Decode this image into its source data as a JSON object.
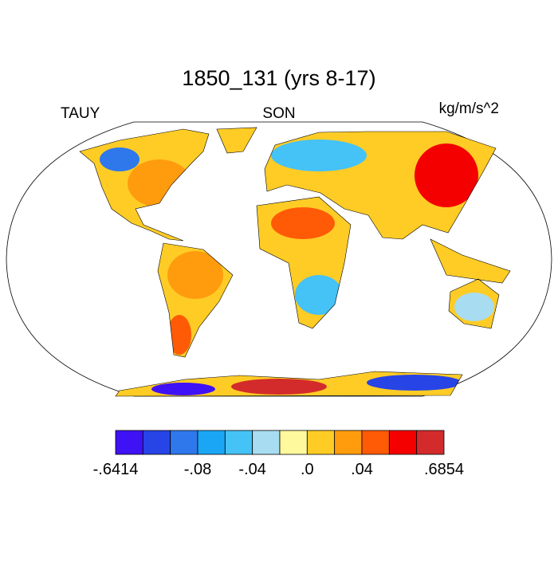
{
  "header": {
    "title": "1850_131 (yrs 8-17)",
    "left": "TAUY",
    "center": "SON",
    "right": "kg/m/s^2"
  },
  "colorbar": {
    "colors": [
      "#3f12f5",
      "#2744e6",
      "#2e78ec",
      "#1aa6f4",
      "#45c2f6",
      "#a8dcf0",
      "#fff99e",
      "#ffcc26",
      "#ff9c0e",
      "#ff5a06",
      "#f50000",
      "#d32b2b"
    ],
    "labels": [
      "-.6414",
      "-.08",
      "-.04",
      ".0",
      ".04",
      ".6854"
    ]
  }
}
